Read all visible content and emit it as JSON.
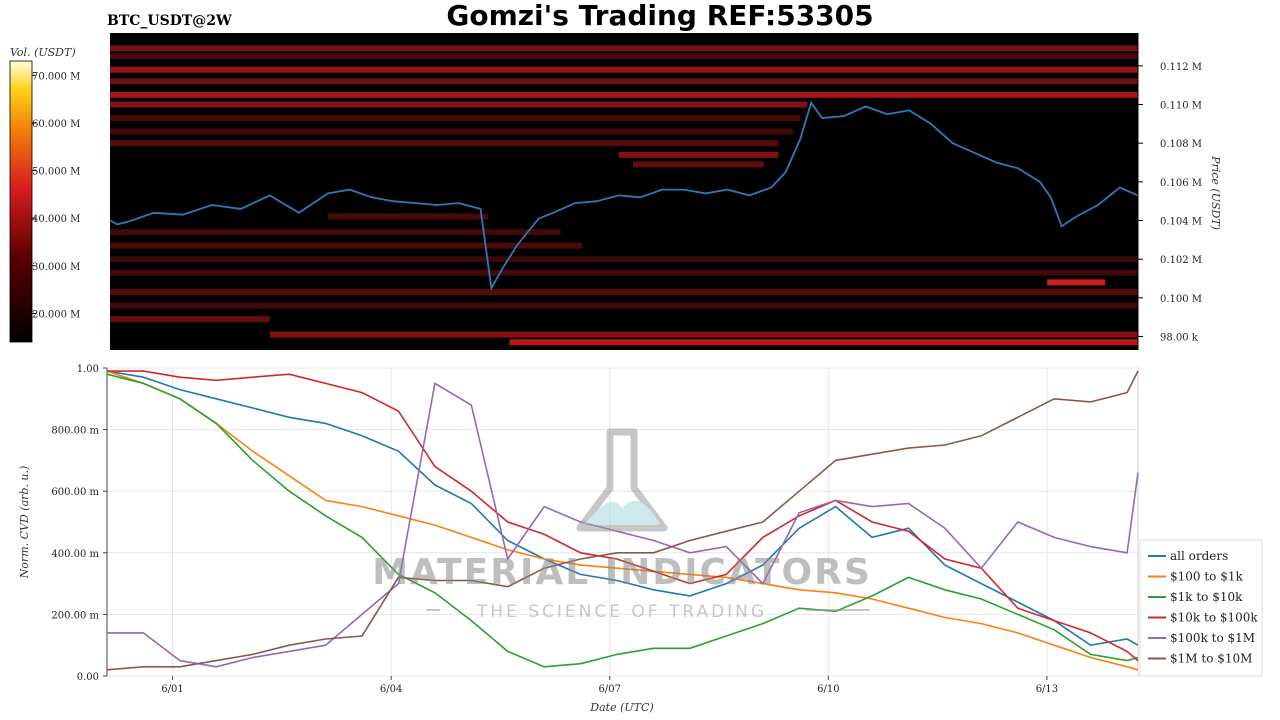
{
  "page": {
    "title": "Gomzi's Trading REF:53305",
    "pair": "BTC_USDT@2W",
    "watermark_main": "MATERIAL INDICATORS",
    "watermark_sub": "THE SCIENCE OF TRADING",
    "colorbar_title": "Vol. (USDT)"
  },
  "colors": {
    "price_line": "#2b7bb9",
    "heat_bg": "#000000",
    "heat_hot": "#d81e1e"
  },
  "chart_data": [
    {
      "type": "heatmap",
      "title": "BTC_USDT@2W",
      "ylabel": "Price (USDT)",
      "ylim": [
        97300,
        113700
      ],
      "y_ticks": [
        "98.00 k",
        "0.100 M",
        "0.102 M",
        "0.104 M",
        "0.106 M",
        "0.108 M",
        "0.110 M",
        "0.112 M"
      ],
      "y_tick_values": [
        98000,
        100000,
        102000,
        104000,
        106000,
        108000,
        110000,
        112000
      ],
      "colorbar_ticks": [
        "20.000 M",
        "30.000 M",
        "40.000 M",
        "50.000 M",
        "60.000 M",
        "70.000 M"
      ],
      "colorbar_values": [
        20000000,
        30000000,
        40000000,
        50000000,
        60000000,
        70000000
      ],
      "colorbar_range": [
        14000000,
        73000000
      ],
      "price_series": {
        "name": "",
        "x": [
          0,
          0.1,
          0.3,
          0.6,
          1.0,
          1.4,
          1.8,
          2.2,
          2.6,
          3.0,
          3.3,
          3.6,
          3.9,
          4.2,
          4.5,
          4.8,
          5.1,
          5.25,
          5.4,
          5.6,
          5.9,
          6.1,
          6.4,
          6.7,
          7.0,
          7.3,
          7.6,
          7.9,
          8.2,
          8.5,
          8.8,
          9.1,
          9.3,
          9.5,
          9.65,
          9.8,
          10.1,
          10.4,
          10.7,
          11.0,
          11.3,
          11.6,
          11.9,
          12.2,
          12.5,
          12.8,
          12.95,
          13.1,
          13.3,
          13.6,
          13.9,
          14.15
        ],
        "y": [
          104000,
          103800,
          104000,
          104400,
          104300,
          104800,
          104600,
          105300,
          104400,
          105400,
          105600,
          105200,
          105000,
          104900,
          104800,
          104900,
          104600,
          100500,
          101500,
          102700,
          104100,
          104400,
          104900,
          105000,
          105300,
          105200,
          105600,
          105600,
          105400,
          105600,
          105300,
          105700,
          106500,
          108200,
          110100,
          109300,
          109400,
          109900,
          109500,
          109700,
          109000,
          108000,
          107500,
          107000,
          106700,
          106000,
          105200,
          103700,
          104200,
          104800,
          105700,
          105300
        ]
      }
    },
    {
      "type": "line",
      "xlabel": "Date (UTC)",
      "ylabel": "Norm. CVD (arb. u.)",
      "xlim": [
        0,
        14.15
      ],
      "x_ticks": [
        "6/01",
        "6/04",
        "6/07",
        "6/10",
        "6/13"
      ],
      "x_tick_values": [
        0.9,
        3.9,
        6.9,
        9.9,
        12.9
      ],
      "ylim": [
        0,
        1
      ],
      "y_ticks": [
        "0.00",
        "200.00 m",
        "400.00 m",
        "600.00 m",
        "800.00 m",
        "1.00"
      ],
      "y_tick_values": [
        0,
        0.2,
        0.4,
        0.6,
        0.8,
        1.0
      ],
      "x": [
        0,
        0.5,
        1.0,
        1.5,
        2.0,
        2.5,
        3.0,
        3.5,
        4.0,
        4.5,
        5.0,
        5.5,
        6.0,
        6.5,
        7.0,
        7.5,
        8.0,
        8.5,
        9.0,
        9.5,
        10.0,
        10.5,
        11.0,
        11.5,
        12.0,
        12.5,
        13.0,
        13.5,
        14.0,
        14.15
      ],
      "series": [
        {
          "name": "all orders",
          "color": "#1f77b4",
          "values": [
            0.99,
            0.97,
            0.93,
            0.9,
            0.87,
            0.84,
            0.82,
            0.78,
            0.73,
            0.62,
            0.56,
            0.44,
            0.38,
            0.33,
            0.31,
            0.28,
            0.26,
            0.3,
            0.36,
            0.48,
            0.55,
            0.45,
            0.48,
            0.36,
            0.3,
            0.24,
            0.18,
            0.1,
            0.12,
            0.1
          ]
        },
        {
          "name": "$100 to $1k",
          "color": "#ff7f0e",
          "values": [
            0.99,
            0.95,
            0.9,
            0.82,
            0.73,
            0.65,
            0.57,
            0.55,
            0.52,
            0.49,
            0.45,
            0.41,
            0.38,
            0.36,
            0.35,
            0.34,
            0.33,
            0.32,
            0.3,
            0.28,
            0.27,
            0.25,
            0.22,
            0.19,
            0.17,
            0.14,
            0.1,
            0.06,
            0.03,
            0.02
          ]
        },
        {
          "name": "$1k to $10k",
          "color": "#2ca02c",
          "values": [
            0.98,
            0.95,
            0.9,
            0.82,
            0.7,
            0.6,
            0.52,
            0.45,
            0.33,
            0.27,
            0.18,
            0.08,
            0.03,
            0.04,
            0.07,
            0.09,
            0.09,
            0.13,
            0.17,
            0.22,
            0.21,
            0.26,
            0.32,
            0.28,
            0.25,
            0.2,
            0.15,
            0.07,
            0.05,
            0.06
          ]
        },
        {
          "name": "$10k to $100k",
          "color": "#d62728",
          "values": [
            0.99,
            0.99,
            0.97,
            0.96,
            0.97,
            0.98,
            0.95,
            0.92,
            0.86,
            0.68,
            0.6,
            0.5,
            0.46,
            0.4,
            0.38,
            0.34,
            0.3,
            0.33,
            0.45,
            0.52,
            0.57,
            0.5,
            0.47,
            0.38,
            0.35,
            0.22,
            0.18,
            0.14,
            0.08,
            0.05
          ]
        },
        {
          "name": "$100k to $1M",
          "color": "#9467bd",
          "values": [
            0.14,
            0.14,
            0.05,
            0.03,
            0.06,
            0.08,
            0.1,
            0.2,
            0.3,
            0.95,
            0.88,
            0.38,
            0.55,
            0.5,
            0.47,
            0.44,
            0.4,
            0.42,
            0.3,
            0.53,
            0.57,
            0.55,
            0.56,
            0.48,
            0.35,
            0.5,
            0.45,
            0.42,
            0.4,
            0.66
          ]
        },
        {
          "name": "$1M to $10M",
          "color": "#8c564b",
          "values": [
            0.02,
            0.03,
            0.03,
            0.05,
            0.07,
            0.1,
            0.12,
            0.13,
            0.32,
            0.31,
            0.31,
            0.29,
            0.35,
            0.38,
            0.4,
            0.4,
            0.44,
            0.47,
            0.5,
            0.6,
            0.7,
            0.72,
            0.74,
            0.75,
            0.78,
            0.84,
            0.9,
            0.89,
            0.92,
            0.99
          ]
        }
      ]
    }
  ]
}
